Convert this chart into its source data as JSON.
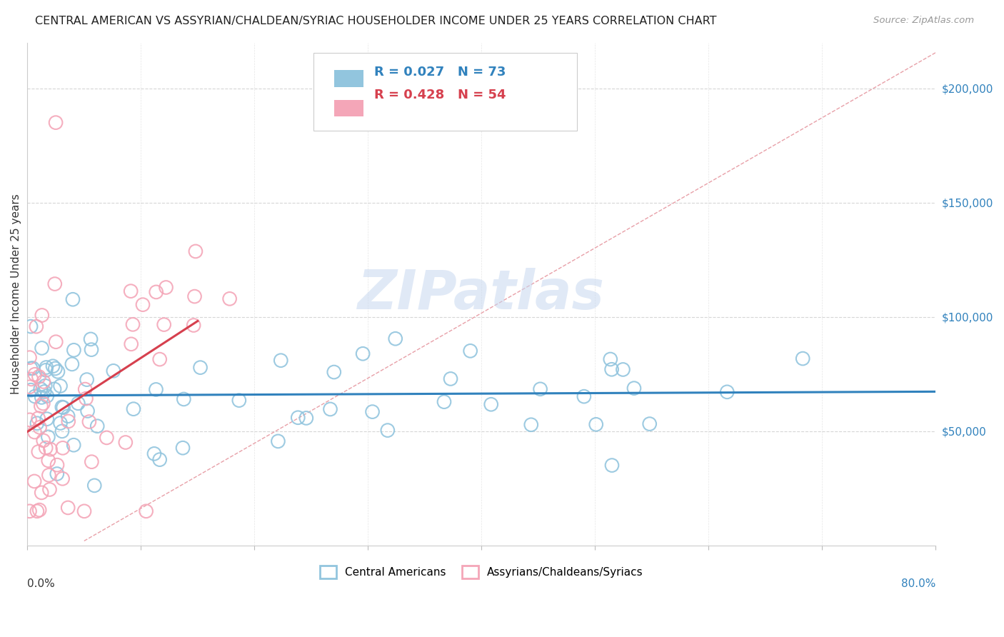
{
  "title": "CENTRAL AMERICAN VS ASSYRIAN/CHALDEAN/SYRIAC HOUSEHOLDER INCOME UNDER 25 YEARS CORRELATION CHART",
  "source": "Source: ZipAtlas.com",
  "ylabel": "Householder Income Under 25 years",
  "xmin": 0.0,
  "xmax": 80.0,
  "ymin": 0,
  "ymax": 220000,
  "blue_R": 0.027,
  "blue_N": 73,
  "pink_R": 0.428,
  "pink_N": 54,
  "blue_color": "#92c5de",
  "pink_color": "#f4a6b8",
  "blue_line_color": "#3182bd",
  "pink_line_color": "#d6404e",
  "legend_label_blue": "Central Americans",
  "legend_label_pink": "Assyrians/Chaldeans/Syriacs",
  "grid_color": "#cccccc",
  "background_color": "#ffffff",
  "watermark": "ZIPatlas",
  "watermark_color": "#c8d8f0",
  "ref_line_color": "#e8a0a8",
  "ytick_color": "#3182bd"
}
